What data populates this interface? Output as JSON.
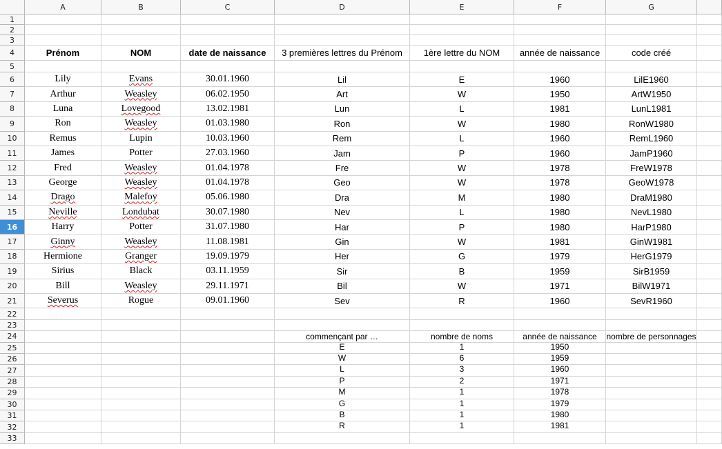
{
  "columns": [
    "A",
    "B",
    "C",
    "D",
    "E",
    "F",
    "G"
  ],
  "row_numbers": [
    1,
    2,
    3,
    4,
    5,
    6,
    7,
    8,
    9,
    10,
    11,
    12,
    13,
    14,
    15,
    16,
    17,
    18,
    19,
    20,
    21,
    22,
    23,
    24,
    25,
    26,
    27,
    28,
    29,
    30,
    31,
    32,
    33
  ],
  "selected_row": 16,
  "header": [
    "Prénom",
    "NOM",
    "date de naissance",
    "3 premières lettres du  Prénom",
    "1ère lettre du NOM",
    "année de naissance",
    "code créé"
  ],
  "people": [
    [
      "Lily",
      "Evans",
      "30.01.1960",
      "Lil",
      "E",
      1960,
      "LilE1960"
    ],
    [
      "Arthur",
      "Weasley",
      "06.02.1950",
      "Art",
      "W",
      1950,
      "ArtW1950"
    ],
    [
      "Luna",
      "Lovegood",
      "13.02.1981",
      "Lun",
      "L",
      1981,
      "LunL1981"
    ],
    [
      "Ron",
      "Weasley",
      "01.03.1980",
      "Ron",
      "W",
      1980,
      "RonW1980"
    ],
    [
      "Remus",
      "Lupin",
      "10.03.1960",
      "Rem",
      "L",
      1960,
      "RemL1960"
    ],
    [
      "James",
      "Potter",
      "27.03.1960",
      "Jam",
      "P",
      1960,
      "JamP1960"
    ],
    [
      "Fred",
      "Weasley",
      "01.04.1978",
      "Fre",
      "W",
      1978,
      "FreW1978"
    ],
    [
      "George",
      "Weasley",
      "01.04.1978",
      "Geo",
      "W",
      1978,
      "GeoW1978"
    ],
    [
      "Drago",
      "Malefoy",
      "05.06.1980",
      "Dra",
      "M",
      1980,
      "DraM1980"
    ],
    [
      "Neville",
      "Londubat",
      "30.07.1980",
      "Nev",
      "L",
      1980,
      "NevL1980"
    ],
    [
      "Harry",
      "Potter",
      "31.07.1980",
      "Har",
      "P",
      1980,
      "HarP1980"
    ],
    [
      "Ginny",
      "Weasley",
      "11.08.1981",
      "Gin",
      "W",
      1981,
      "GinW1981"
    ],
    [
      "Hermione",
      "Granger",
      "19.09.1979",
      "Her",
      "G",
      1979,
      "HerG1979"
    ],
    [
      "Sirius",
      "Black",
      "03.11.1959",
      "Sir",
      "B",
      1959,
      "SirB1959"
    ],
    [
      "Bill",
      "Weasley",
      "29.11.1971",
      "Bil",
      "W",
      1971,
      "BilW1971"
    ],
    [
      "Severus",
      "Rogue",
      "09.01.1960",
      "Sev",
      "R",
      1960,
      "SevR1960"
    ]
  ],
  "summary": {
    "header": [
      "commençant par …",
      "nombre de noms",
      "année de naissance",
      "nombre de personnages"
    ],
    "rows": [
      [
        "E",
        1,
        1950
      ],
      [
        "W",
        6,
        1959
      ],
      [
        "L",
        3,
        1960
      ],
      [
        "P",
        2,
        1971
      ],
      [
        "M",
        1,
        1978
      ],
      [
        "G",
        1,
        1979
      ],
      [
        "B",
        1,
        1980
      ],
      [
        "R",
        1,
        1981
      ]
    ]
  }
}
